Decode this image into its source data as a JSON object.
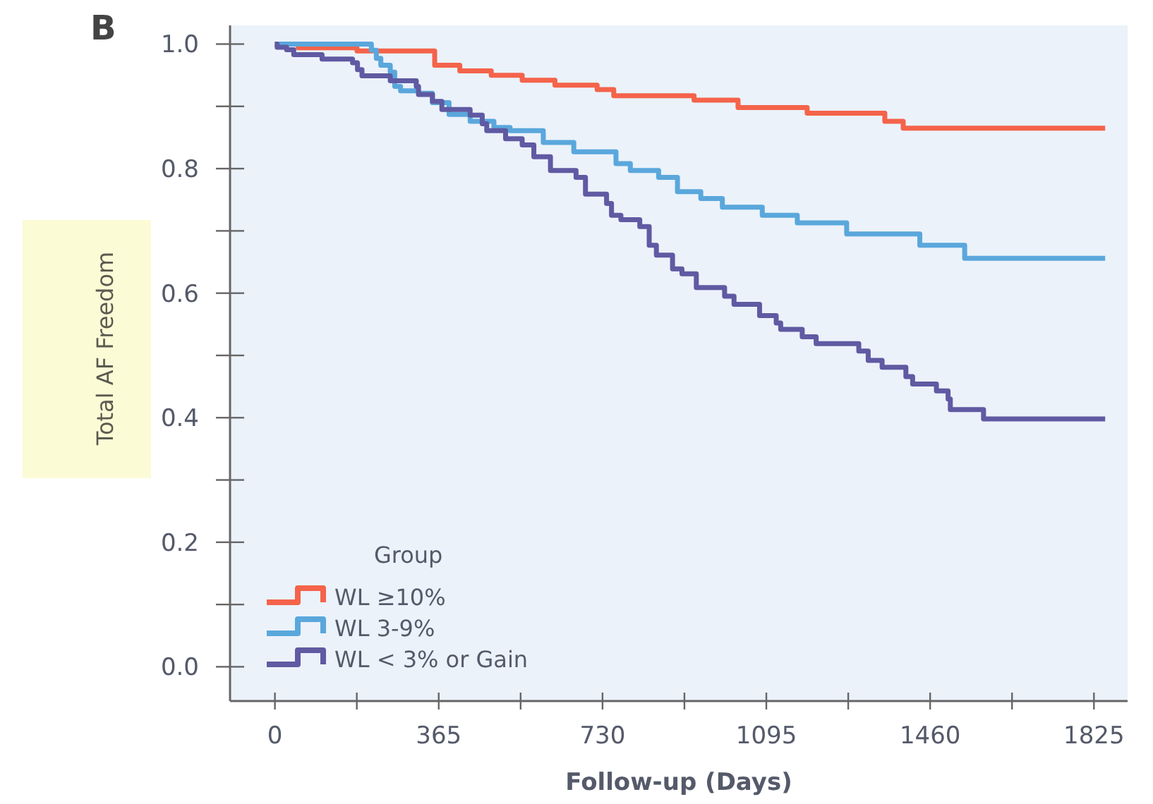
{
  "chart_data": {
    "type": "step",
    "title": "B",
    "xlabel": "Follow-up (Days)",
    "ylabel": "Total AF Freedom",
    "legend_title": "Group",
    "legend": "bottom left",
    "grid": false,
    "xlim": [
      -100,
      1900
    ],
    "ylim": [
      -0.055,
      1.03
    ],
    "xticks": [
      0,
      {
        "value": 182.5,
        "label": null
      },
      365,
      {
        "value": 547.5,
        "label": null
      },
      730,
      {
        "value": 912.5,
        "label": null
      },
      1095,
      {
        "value": 1277.5,
        "label": null
      },
      1460,
      {
        "value": 1642.5,
        "label": null
      },
      1825
    ],
    "yticks": [
      {
        "value": 0,
        "label": "0.0"
      },
      {
        "value": 0.1,
        "label": null
      },
      0.2,
      {
        "value": 0.3,
        "label": null
      },
      0.4,
      {
        "value": 0.5,
        "label": null
      },
      0.6,
      {
        "value": 0.7,
        "label": null
      },
      0.8,
      {
        "value": 0.9,
        "label": null
      },
      {
        "value": 1,
        "label": "1.0"
      }
    ],
    "series": [
      {
        "name": "WL ≥10%",
        "color": "#f4634a",
        "x": [
          0,
          52,
          183,
          356,
          412,
          482,
          551,
          624,
          718,
          755,
          934,
          1032,
          1186,
          1359,
          1400,
          1850
        ],
        "values": [
          1.0,
          0.994,
          0.989,
          0.966,
          0.957,
          0.95,
          0.942,
          0.934,
          0.927,
          0.917,
          0.91,
          0.898,
          0.889,
          0.876,
          0.865,
          0.865
        ]
      },
      {
        "name": "WL 3-9%",
        "color": "#5aa7dc",
        "x": [
          0,
          215,
          226,
          236,
          257,
          267,
          280,
          320,
          351,
          388,
          435,
          488,
          524,
          598,
          666,
          760,
          792,
          855,
          897,
          949,
          997,
          1086,
          1164,
          1274,
          1437,
          1537,
          1850
        ],
        "values": [
          1.0,
          0.99,
          0.977,
          0.966,
          0.955,
          0.932,
          0.925,
          0.921,
          0.906,
          0.887,
          0.876,
          0.866,
          0.861,
          0.842,
          0.827,
          0.808,
          0.797,
          0.786,
          0.763,
          0.752,
          0.738,
          0.725,
          0.713,
          0.695,
          0.677,
          0.656,
          0.656
        ]
      },
      {
        "name": "WL < 3% or Gain",
        "color": "#5f5aa2",
        "x": [
          0,
          5,
          26,
          42,
          105,
          173,
          184,
          194,
          257,
          315,
          320,
          351,
          372,
          435,
          462,
          472,
          514,
          551,
          577,
          614,
          671,
          692,
          739,
          750,
          771,
          813,
          834,
          850,
          886,
          907,
          939,
          1002,
          1023,
          1080,
          1117,
          1127,
          1175,
          1206,
          1301,
          1322,
          1353,
          1406,
          1421,
          1474,
          1500,
          1505,
          1579,
          1850
        ],
        "values": [
          1.0,
          0.995,
          0.991,
          0.983,
          0.976,
          0.97,
          0.959,
          0.949,
          0.941,
          0.932,
          0.919,
          0.908,
          0.895,
          0.886,
          0.872,
          0.861,
          0.848,
          0.838,
          0.819,
          0.797,
          0.786,
          0.759,
          0.744,
          0.725,
          0.718,
          0.707,
          0.677,
          0.661,
          0.639,
          0.631,
          0.609,
          0.595,
          0.582,
          0.564,
          0.552,
          0.542,
          0.53,
          0.519,
          0.507,
          0.492,
          0.481,
          0.466,
          0.454,
          0.443,
          0.43,
          0.413,
          0.398,
          0.398
        ]
      }
    ]
  }
}
